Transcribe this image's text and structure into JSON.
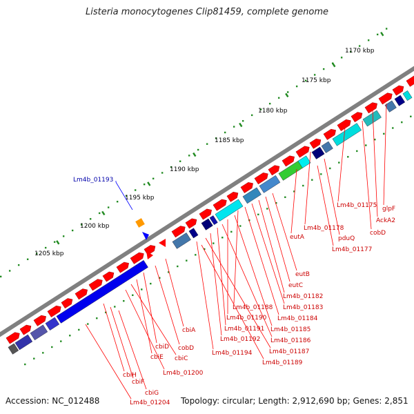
{
  "title": "Listeria monocytogenes Clip81459, complete genome",
  "footer": {
    "accession": "Accession: NC_012488",
    "summary": "Topology: circular; Length: 2,912,690 bp; Genes: 2,851"
  },
  "colors": {
    "backbone": "#808080",
    "forward_gene": "#ff0000",
    "ticks": "#228b22",
    "label_red": "#cc0000",
    "label_blue": "#0000aa"
  },
  "scale_labels": [
    "1170 kbp",
    "1175 kbp",
    "1180 kbp",
    "1185 kbp",
    "1190 kbp",
    "1195 kbp",
    "1200 kbp",
    "1205 kbp"
  ],
  "gene_labels": [
    {
      "text": "glpF",
      "color": "red"
    },
    {
      "text": "AckA2",
      "color": "red"
    },
    {
      "text": "cobD",
      "color": "red"
    },
    {
      "text": "Lm4b_01175",
      "color": "red"
    },
    {
      "text": "Lm4b_01178",
      "color": "red"
    },
    {
      "text": "pduQ",
      "color": "red"
    },
    {
      "text": "Lm4b_01177",
      "color": "red"
    },
    {
      "text": "eutA",
      "color": "red"
    },
    {
      "text": "eutB",
      "color": "red"
    },
    {
      "text": "eutC",
      "color": "red"
    },
    {
      "text": "Lm4b_01182",
      "color": "red"
    },
    {
      "text": "Lm4b_01183",
      "color": "red"
    },
    {
      "text": "Lm4b_01184",
      "color": "red"
    },
    {
      "text": "Lm4b_01188",
      "color": "red"
    },
    {
      "text": "Lm4b_01185",
      "color": "red"
    },
    {
      "text": "Lm4b_01190",
      "color": "red"
    },
    {
      "text": "Lm4b_01186",
      "color": "red"
    },
    {
      "text": "Lm4b_01191",
      "color": "red"
    },
    {
      "text": "Lm4b_01192",
      "color": "red"
    },
    {
      "text": "Lm4b_01187",
      "color": "red"
    },
    {
      "text": "cbiA",
      "color": "red"
    },
    {
      "text": "cobD",
      "color": "red"
    },
    {
      "text": "Lm4b_01194",
      "color": "red"
    },
    {
      "text": "Lm4b_01189",
      "color": "red"
    },
    {
      "text": "cbiD",
      "color": "red"
    },
    {
      "text": "cbiE",
      "color": "red"
    },
    {
      "text": "cbiC",
      "color": "red"
    },
    {
      "text": "Lm4b_01200",
      "color": "red"
    },
    {
      "text": "cbiH",
      "color": "red"
    },
    {
      "text": "cbiF",
      "color": "red"
    },
    {
      "text": "cbiG",
      "color": "red"
    },
    {
      "text": "Lm4b_01204",
      "color": "red"
    },
    {
      "text": "Lm4b_01193",
      "color": "blue"
    }
  ]
}
